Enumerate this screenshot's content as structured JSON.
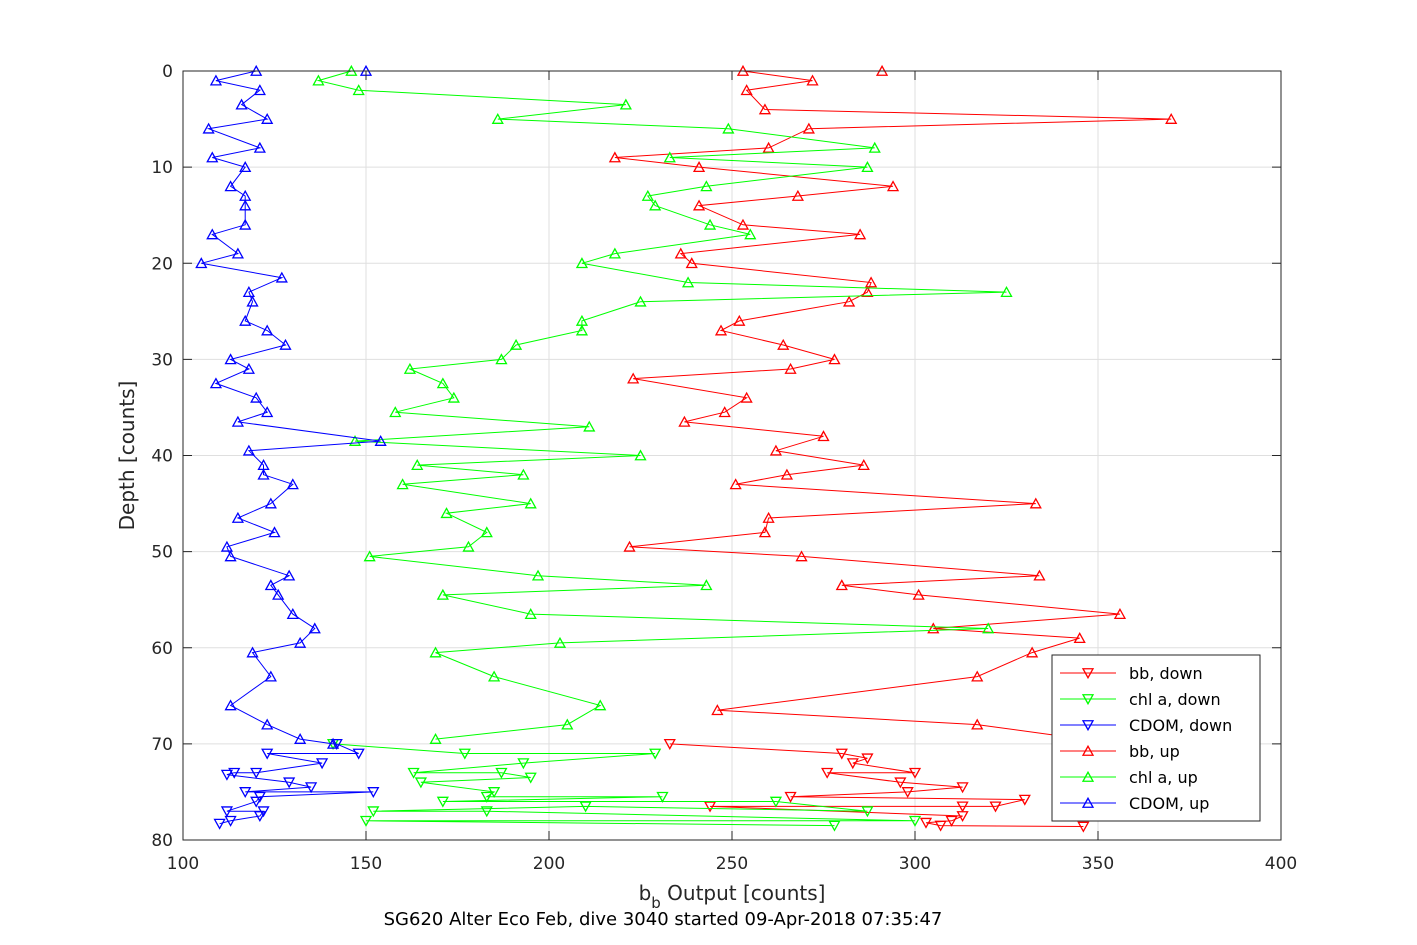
{
  "chart_data": {
    "type": "line",
    "title": "SG620 Alter Eco Feb, dive 3040 started 09-Apr-2018 07:35:47",
    "xlabel": {
      "main": "b",
      "subscript": "b",
      "rest": " Output [counts]"
    },
    "ylabel": "Depth [counts]",
    "xlim": [
      100,
      400
    ],
    "ylim": [
      0,
      80
    ],
    "y_reversed": true,
    "x_ticks": [
      100,
      150,
      200,
      250,
      300,
      350,
      400
    ],
    "y_ticks": [
      0,
      10,
      20,
      30,
      40,
      50,
      60,
      70,
      80
    ],
    "grid": true,
    "legend_position": "bottom-right",
    "series": [
      {
        "name": "bb, down",
        "color": "#ff0000",
        "marker": "triangle-down",
        "points": [
          [
            233,
            70
          ],
          [
            280,
            71
          ],
          [
            287,
            71.5
          ],
          [
            283,
            72
          ],
          [
            300,
            73
          ],
          [
            276,
            73
          ],
          [
            296,
            74
          ],
          [
            313,
            74.5
          ],
          [
            298,
            75
          ],
          [
            266,
            75.5
          ],
          [
            330,
            75.8
          ],
          [
            322,
            76.5
          ],
          [
            313,
            76.5
          ],
          [
            244,
            76.5
          ],
          [
            313,
            77.5
          ],
          [
            310,
            78
          ],
          [
            303,
            78.2
          ],
          [
            307,
            78.5
          ],
          [
            346,
            78.6
          ]
        ]
      },
      {
        "name": "chl a, down",
        "color": "#00ff00",
        "marker": "triangle-down",
        "points": [
          [
            141,
            70
          ],
          [
            177,
            71
          ],
          [
            229,
            71
          ],
          [
            193,
            72
          ],
          [
            163,
            73
          ],
          [
            187,
            73
          ],
          [
            195,
            73.5
          ],
          [
            165,
            74
          ],
          [
            185,
            75
          ],
          [
            183,
            75.5
          ],
          [
            231,
            75.5
          ],
          [
            171,
            76
          ],
          [
            262,
            76
          ],
          [
            287,
            77
          ],
          [
            210,
            76.5
          ],
          [
            152,
            77
          ],
          [
            183,
            77
          ],
          [
            300,
            78
          ],
          [
            150,
            78
          ],
          [
            278,
            78.5
          ]
        ]
      },
      {
        "name": "CDOM, down",
        "color": "#0000ff",
        "marker": "triangle-down",
        "points": [
          [
            142,
            70
          ],
          [
            148,
            71
          ],
          [
            123,
            71
          ],
          [
            138,
            72
          ],
          [
            120,
            73
          ],
          [
            114,
            73
          ],
          [
            112,
            73.2
          ],
          [
            129,
            74
          ],
          [
            135,
            74.5
          ],
          [
            117,
            75
          ],
          [
            152,
            75
          ],
          [
            121,
            75.5
          ],
          [
            120,
            76
          ],
          [
            112,
            77
          ],
          [
            122,
            77
          ],
          [
            121,
            77.5
          ],
          [
            113,
            78
          ],
          [
            110,
            78.3
          ]
        ]
      },
      {
        "name": "bb, up",
        "color": "#ff0000",
        "marker": "triangle-up",
        "points": [
          [
            291,
            0
          ],
          [
            253,
            0
          ],
          [
            272,
            1
          ],
          [
            254,
            2
          ],
          [
            259,
            4
          ],
          [
            370,
            5
          ],
          [
            271,
            6
          ],
          [
            260,
            8
          ],
          [
            218,
            9
          ],
          [
            241,
            10
          ],
          [
            294,
            12
          ],
          [
            268,
            13
          ],
          [
            241,
            14
          ],
          [
            253,
            16
          ],
          [
            285,
            17
          ],
          [
            236,
            19
          ],
          [
            239,
            20
          ],
          [
            288,
            22
          ],
          [
            287,
            23
          ],
          [
            282,
            24
          ],
          [
            252,
            26
          ],
          [
            247,
            27
          ],
          [
            264,
            28.5
          ],
          [
            278,
            30
          ],
          [
            266,
            31
          ],
          [
            223,
            32
          ],
          [
            254,
            34
          ],
          [
            248,
            35.5
          ],
          [
            237,
            36.5
          ],
          [
            275,
            38
          ],
          [
            262,
            39.5
          ],
          [
            286,
            41
          ],
          [
            265,
            42
          ],
          [
            251,
            43
          ],
          [
            333,
            45
          ],
          [
            260,
            46.5
          ],
          [
            259,
            48
          ],
          [
            222,
            49.5
          ],
          [
            269,
            50.5
          ],
          [
            334,
            52.5
          ],
          [
            280,
            53.5
          ],
          [
            301,
            54.5
          ],
          [
            356,
            56.5
          ],
          [
            305,
            58
          ],
          [
            345,
            59
          ],
          [
            332,
            60.5
          ],
          [
            317,
            63
          ],
          [
            246,
            66.5
          ],
          [
            317,
            68
          ],
          [
            346,
            69.5
          ]
        ]
      },
      {
        "name": "chl a, up",
        "color": "#00ff00",
        "marker": "triangle-up",
        "points": [
          [
            146,
            0
          ],
          [
            137,
            1
          ],
          [
            148,
            2
          ],
          [
            221,
            3.5
          ],
          [
            186,
            5
          ],
          [
            249,
            6
          ],
          [
            289,
            8
          ],
          [
            233,
            9
          ],
          [
            287,
            10
          ],
          [
            243,
            12
          ],
          [
            227,
            13
          ],
          [
            229,
            14
          ],
          [
            244,
            16
          ],
          [
            255,
            17
          ],
          [
            218,
            19
          ],
          [
            209,
            20
          ],
          [
            238,
            22
          ],
          [
            325,
            23
          ],
          [
            225,
            24
          ],
          [
            209,
            26
          ],
          [
            209,
            27
          ],
          [
            191,
            28.5
          ],
          [
            187,
            30
          ],
          [
            162,
            31
          ],
          [
            171,
            32.5
          ],
          [
            174,
            34
          ],
          [
            158,
            35.5
          ],
          [
            211,
            37
          ],
          [
            147,
            38.5
          ],
          [
            225,
            40
          ],
          [
            164,
            41
          ],
          [
            193,
            42
          ],
          [
            160,
            43
          ],
          [
            195,
            45
          ],
          [
            172,
            46
          ],
          [
            183,
            48
          ],
          [
            178,
            49.5
          ],
          [
            151,
            50.5
          ],
          [
            197,
            52.5
          ],
          [
            243,
            53.5
          ],
          [
            171,
            54.5
          ],
          [
            195,
            56.5
          ],
          [
            320,
            58
          ],
          [
            203,
            59.5
          ],
          [
            169,
            60.5
          ],
          [
            185,
            63
          ],
          [
            214,
            66
          ],
          [
            205,
            68
          ],
          [
            169,
            69.5
          ]
        ]
      },
      {
        "name": "CDOM, up",
        "color": "#0000ff",
        "marker": "triangle-up",
        "points": [
          [
            150,
            0
          ],
          [
            120,
            0
          ],
          [
            109,
            1
          ],
          [
            121,
            2
          ],
          [
            116,
            3.5
          ],
          [
            123,
            5
          ],
          [
            107,
            6
          ],
          [
            121,
            8
          ],
          [
            108,
            9
          ],
          [
            117,
            10
          ],
          [
            113,
            12
          ],
          [
            117,
            13
          ],
          [
            117,
            14
          ],
          [
            117,
            16
          ],
          [
            108,
            17
          ],
          [
            115,
            19
          ],
          [
            105,
            20
          ],
          [
            127,
            21.5
          ],
          [
            118,
            23
          ],
          [
            119,
            24
          ],
          [
            117,
            26
          ],
          [
            123,
            27
          ],
          [
            128,
            28.5
          ],
          [
            113,
            30
          ],
          [
            118,
            31
          ],
          [
            109,
            32.5
          ],
          [
            120,
            34
          ],
          [
            123,
            35.5
          ],
          [
            115,
            36.5
          ],
          [
            154,
            38.5
          ],
          [
            118,
            39.5
          ],
          [
            122,
            41
          ],
          [
            122,
            42
          ],
          [
            130,
            43
          ],
          [
            124,
            45
          ],
          [
            115,
            46.5
          ],
          [
            125,
            48
          ],
          [
            112,
            49.5
          ],
          [
            113,
            50.5
          ],
          [
            129,
            52.5
          ],
          [
            124,
            53.5
          ],
          [
            126,
            54.5
          ],
          [
            130,
            56.5
          ],
          [
            136,
            58
          ],
          [
            132,
            59.5
          ],
          [
            119,
            60.5
          ],
          [
            124,
            63
          ],
          [
            113,
            66
          ],
          [
            123,
            68
          ],
          [
            132,
            69.5
          ],
          [
            141,
            70
          ]
        ]
      }
    ]
  }
}
